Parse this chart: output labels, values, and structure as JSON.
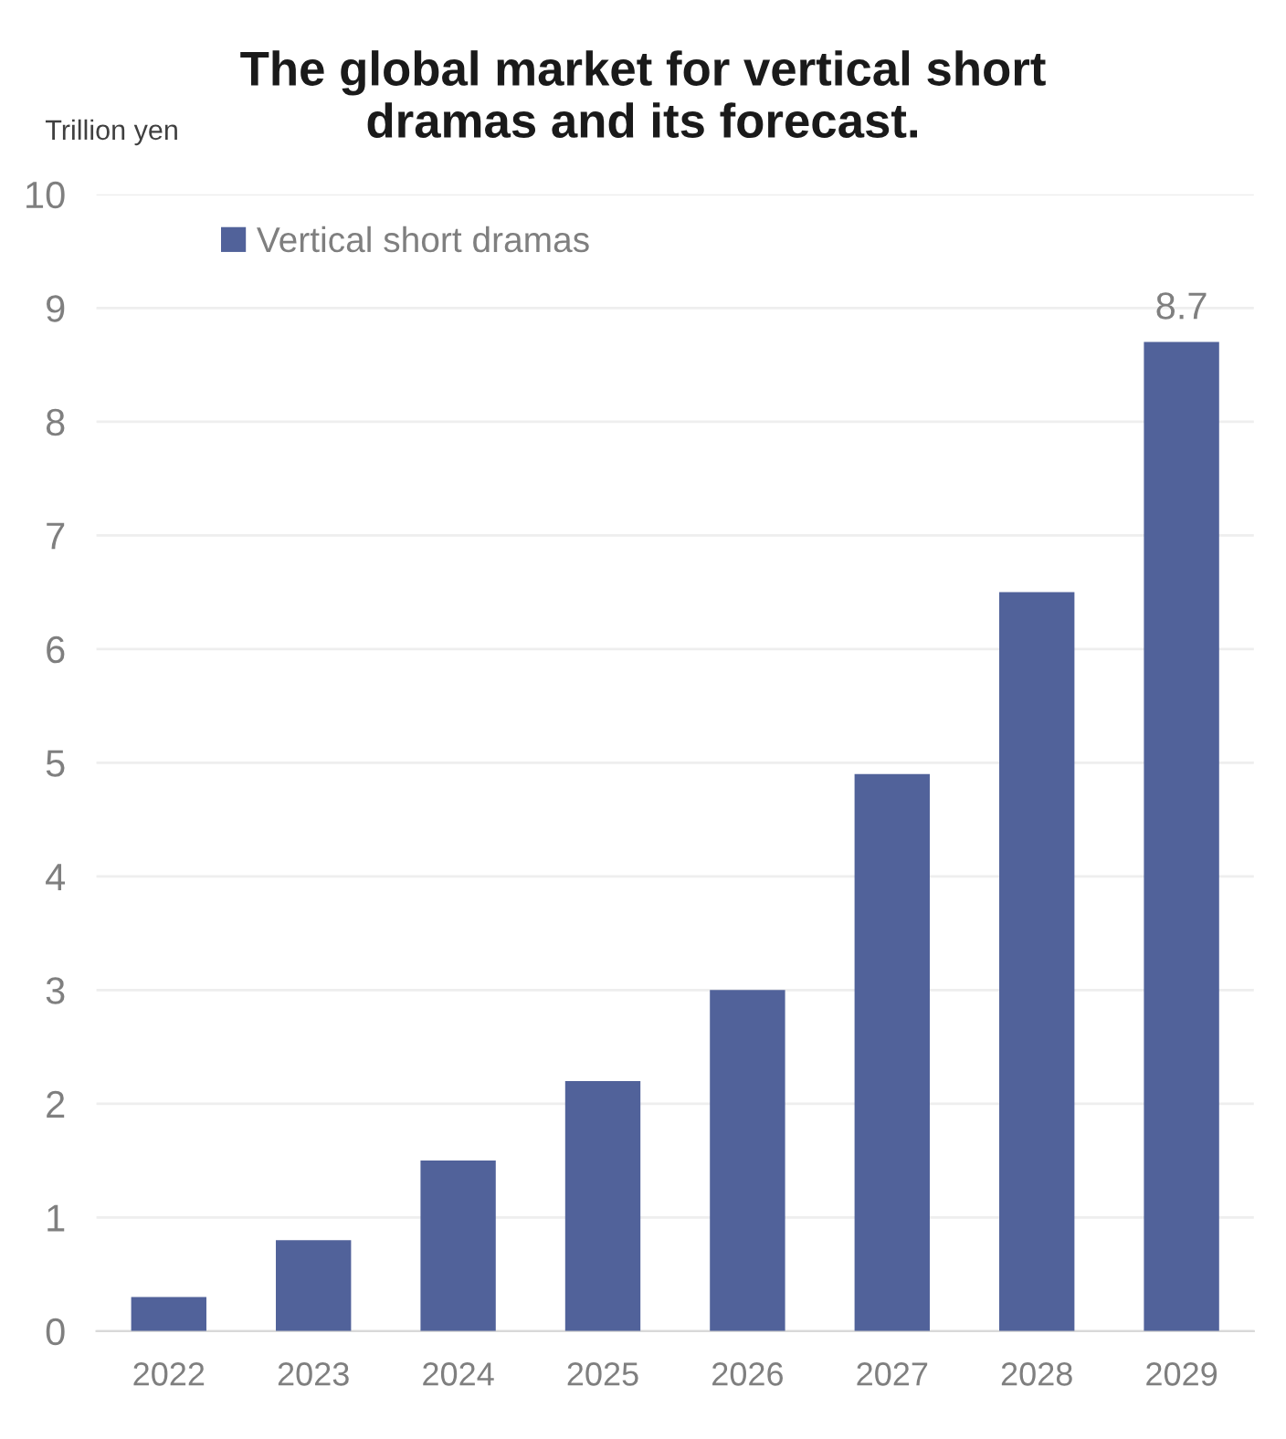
{
  "chart_data": {
    "type": "bar",
    "title": "The global market for vertical short\ndramas and its forecast.",
    "ylabel": "Trillion yen",
    "categories": [
      "2022",
      "2023",
      "2024",
      "2025",
      "2026",
      "2027",
      "2028",
      "2029"
    ],
    "series": [
      {
        "name": "Vertical short dramas",
        "color": "#51629a",
        "values": [
          0.3,
          0.8,
          1.5,
          2.2,
          3.0,
          4.9,
          6.5,
          8.7
        ],
        "value_labels": [
          null,
          null,
          null,
          null,
          null,
          null,
          null,
          "8.7"
        ]
      }
    ],
    "ylim": [
      0,
      10
    ],
    "yticks": [
      0,
      1,
      2,
      3,
      4,
      5,
      6,
      7,
      8,
      9,
      10
    ],
    "grid": "y",
    "legend": "top left"
  }
}
